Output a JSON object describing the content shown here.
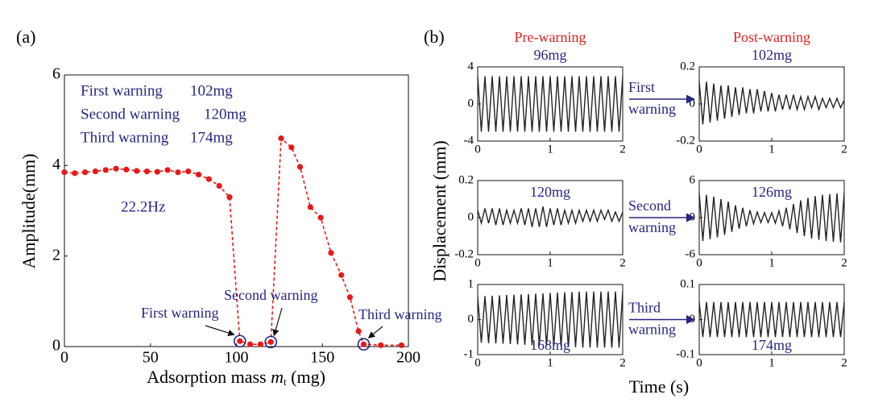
{
  "panel_labels": [
    "(a)",
    "(b)"
  ],
  "panel_a_notes": {
    "info": [
      {
        "event": "First warning",
        "mass": "102mg"
      },
      {
        "event": "Second warning",
        "mass": "120mg"
      },
      {
        "event": "Third warning",
        "mass": "174mg"
      }
    ],
    "frequency": "22.2Hz",
    "warnings": [
      {
        "label": "First warning",
        "x": 102
      },
      {
        "label": "Second warning",
        "x": 120
      },
      {
        "label": "Third warning",
        "x": 174
      }
    ]
  },
  "panel_b": {
    "ylabel": "Displacement (mm)",
    "xlabel": "Time (s)",
    "column_titles": [
      "Pre-warning",
      "Post-warning"
    ],
    "arrow_labels": [
      [
        "First",
        "warning"
      ],
      [
        "Second",
        "warning"
      ],
      [
        "Third",
        "warning"
      ]
    ]
  },
  "chart_data": [
    {
      "type": "line",
      "xlabel": {
        "text": "Adsorption mass ",
        "var": "m",
        "sub": "t",
        "unit": " (mg)"
      },
      "ylabel": "Amplitude(mm)",
      "x": [
        0,
        6,
        12,
        18,
        24,
        30,
        36,
        42,
        48,
        54,
        60,
        66,
        72,
        78,
        84,
        90,
        96,
        102,
        108,
        114,
        120,
        126,
        132,
        137,
        143,
        149,
        155,
        161,
        166,
        171,
        174,
        184,
        196
      ],
      "values": [
        3.85,
        3.83,
        3.85,
        3.87,
        3.9,
        3.93,
        3.91,
        3.88,
        3.87,
        3.86,
        3.9,
        3.85,
        3.87,
        3.8,
        3.7,
        3.55,
        3.3,
        0.12,
        0.05,
        0.05,
        0.1,
        4.6,
        4.4,
        3.97,
        3.08,
        2.85,
        2.07,
        1.58,
        1.09,
        0.34,
        0.05,
        0.03,
        0.03
      ],
      "color": "#e81818",
      "line_style": "dashed",
      "markers": true,
      "xlim": [
        0,
        200
      ],
      "xticks": [
        0,
        50,
        100,
        150,
        200
      ],
      "ylim": [
        0,
        6
      ],
      "yticks": [
        0,
        2,
        4,
        6
      ]
    },
    {
      "type": "line",
      "title": "96mg",
      "color": "#222222",
      "x": [
        0,
        0.05,
        0.1,
        0.15,
        0.2,
        0.25,
        0.3,
        0.35,
        0.4,
        0.45,
        0.5,
        0.55,
        0.6,
        0.65,
        0.7,
        0.75,
        0.8,
        0.85,
        0.9,
        0.95,
        1,
        1.05,
        1.1,
        1.15,
        1.2,
        1.25,
        1.3,
        1.35,
        1.4,
        1.45,
        1.5,
        1.55,
        1.6,
        1.65,
        1.7,
        1.75,
        1.8,
        1.85,
        1.9,
        1.95,
        2
      ],
      "values": [
        3,
        -3,
        3,
        -3,
        3,
        -3,
        3,
        -3,
        3,
        -3,
        3,
        -3,
        3,
        -3,
        3,
        -3,
        3,
        -3,
        3,
        -3,
        3,
        -3,
        3,
        -3,
        3,
        -3,
        3,
        -3,
        3,
        -3,
        3,
        -3,
        3,
        -3,
        3,
        -3,
        3,
        -3,
        3,
        -3,
        3
      ],
      "xlim": [
        0,
        2
      ],
      "xticks": [
        0,
        1,
        2
      ],
      "ylim": [
        -4,
        4
      ],
      "yticks": [
        -4,
        0,
        4
      ]
    },
    {
      "type": "line",
      "title": "102mg",
      "color": "#222222",
      "x": [
        0,
        0.05,
        0.1,
        0.15,
        0.2,
        0.25,
        0.3,
        0.35,
        0.4,
        0.45,
        0.5,
        0.55,
        0.6,
        0.65,
        0.7,
        0.75,
        0.8,
        0.85,
        0.9,
        0.95,
        1,
        1.05,
        1.1,
        1.15,
        1.2,
        1.25,
        1.3,
        1.35,
        1.4,
        1.45,
        1.5,
        1.55,
        1.6,
        1.65,
        1.7,
        1.75,
        1.8,
        1.85,
        1.9,
        1.95,
        2
      ],
      "values": [
        0.12,
        -0.11,
        0.12,
        -0.1,
        0.11,
        -0.09,
        0.1,
        -0.08,
        0.1,
        -0.07,
        0.09,
        -0.06,
        0.09,
        -0.05,
        0.08,
        -0.05,
        0.08,
        -0.04,
        0.07,
        -0.04,
        0.06,
        -0.04,
        0.05,
        -0.03,
        0.05,
        -0.03,
        0.05,
        -0.03,
        0.04,
        -0.03,
        0.04,
        -0.02,
        0.04,
        -0.03,
        0.03,
        -0.02,
        0.03,
        -0.02,
        0.03,
        -0.02,
        0.02
      ],
      "xlim": [
        0,
        2
      ],
      "xticks": [
        0,
        1,
        2
      ],
      "ylim": [
        -0.2,
        0.2
      ],
      "yticks": [
        -0.2,
        0,
        0.2
      ]
    },
    {
      "type": "line",
      "title": "120mg",
      "color": "#222222",
      "x": [
        0,
        0.05,
        0.1,
        0.15,
        0.2,
        0.25,
        0.3,
        0.35,
        0.4,
        0.45,
        0.5,
        0.55,
        0.6,
        0.65,
        0.7,
        0.75,
        0.8,
        0.85,
        0.9,
        0.95,
        1,
        1.05,
        1.1,
        1.15,
        1.2,
        1.25,
        1.3,
        1.35,
        1.4,
        1.45,
        1.5,
        1.55,
        1.6,
        1.65,
        1.7,
        1.75,
        1.8,
        1.85,
        1.9,
        1.95,
        2
      ],
      "values": [
        0.04,
        -0.03,
        0.05,
        -0.03,
        0.05,
        -0.04,
        0.05,
        -0.04,
        0.04,
        -0.03,
        0.04,
        -0.03,
        0.05,
        -0.04,
        0.05,
        -0.05,
        0.05,
        -0.05,
        0.06,
        -0.05,
        0.05,
        -0.04,
        0.05,
        -0.04,
        0.04,
        -0.03,
        0.04,
        -0.03,
        0.04,
        -0.02,
        0.04,
        -0.02,
        0.04,
        -0.02,
        0.04,
        -0.01,
        0.04,
        -0.02,
        0.03,
        -0.02,
        0.03
      ],
      "xlim": [
        0,
        2
      ],
      "xticks": [
        0,
        1,
        2
      ],
      "ylim": [
        -0.2,
        0.2
      ],
      "yticks": [
        -0.2,
        0,
        0.2
      ]
    },
    {
      "type": "line",
      "title": "126mg",
      "color": "#222222",
      "x": [
        0,
        0.05,
        0.1,
        0.15,
        0.2,
        0.25,
        0.3,
        0.35,
        0.4,
        0.45,
        0.5,
        0.55,
        0.6,
        0.65,
        0.7,
        0.75,
        0.8,
        0.85,
        0.9,
        0.95,
        1,
        1.05,
        1.1,
        1.15,
        1.2,
        1.25,
        1.3,
        1.35,
        1.4,
        1.45,
        1.5,
        1.55,
        1.6,
        1.65,
        1.7,
        1.75,
        1.8,
        1.85,
        1.9,
        1.95,
        2
      ],
      "values": [
        4,
        -3.8,
        3.7,
        -3.5,
        3.4,
        -3.2,
        3,
        -2.8,
        2.6,
        -2.3,
        2,
        -1.8,
        1.6,
        -1.4,
        1.2,
        -1,
        0.9,
        -0.8,
        0.8,
        -0.8,
        0.8,
        -0.9,
        1.1,
        -1.4,
        1.6,
        -1.9,
        2.2,
        -2.5,
        2.8,
        -3,
        3.2,
        -3.4,
        3.5,
        -3.6,
        3.7,
        -3.8,
        3.8,
        -3.9,
        3.9,
        -4,
        4
      ],
      "xlim": [
        0,
        2
      ],
      "xticks": [
        0,
        1,
        2
      ],
      "ylim": [
        -6,
        6
      ],
      "yticks": [
        -6,
        0,
        6
      ]
    },
    {
      "type": "line",
      "title": "168mg",
      "color": "#222222",
      "x": [
        0,
        0.05,
        0.1,
        0.15,
        0.2,
        0.25,
        0.3,
        0.35,
        0.4,
        0.45,
        0.5,
        0.55,
        0.6,
        0.65,
        0.7,
        0.75,
        0.8,
        0.85,
        0.9,
        0.95,
        1,
        1.05,
        1.1,
        1.15,
        1.2,
        1.25,
        1.3,
        1.35,
        1.4,
        1.45,
        1.5,
        1.55,
        1.6,
        1.65,
        1.7,
        1.75,
        1.8,
        1.85,
        1.9,
        1.95,
        2
      ],
      "values": [
        0.65,
        -0.66,
        0.67,
        -0.67,
        0.68,
        -0.68,
        0.69,
        -0.69,
        0.7,
        -0.7,
        0.71,
        -0.71,
        0.72,
        -0.72,
        0.73,
        -0.73,
        0.74,
        -0.74,
        0.75,
        -0.75,
        0.76,
        -0.76,
        0.77,
        -0.77,
        0.78,
        -0.78,
        0.79,
        -0.79,
        0.8,
        -0.8,
        0.8,
        -0.8,
        0.8,
        -0.8,
        0.8,
        -0.8,
        0.8,
        -0.8,
        0.8,
        -0.8,
        0.8
      ],
      "xlim": [
        0,
        2
      ],
      "xticks": [
        0,
        1,
        2
      ],
      "ylim": [
        -1,
        1
      ],
      "yticks": [
        -1,
        0,
        1
      ]
    },
    {
      "type": "line",
      "title": "174mg",
      "color": "#222222",
      "x": [
        0,
        0.05,
        0.1,
        0.15,
        0.2,
        0.25,
        0.3,
        0.35,
        0.4,
        0.45,
        0.5,
        0.55,
        0.6,
        0.65,
        0.7,
        0.75,
        0.8,
        0.85,
        0.9,
        0.95,
        1,
        1.05,
        1.1,
        1.15,
        1.2,
        1.25,
        1.3,
        1.35,
        1.4,
        1.45,
        1.5,
        1.55,
        1.6,
        1.65,
        1.7,
        1.75,
        1.8,
        1.85,
        1.9,
        1.95,
        2
      ],
      "values": [
        0.05,
        -0.05,
        0.05,
        -0.05,
        0.05,
        -0.05,
        0.05,
        -0.05,
        0.05,
        -0.05,
        0.05,
        -0.05,
        0.05,
        -0.05,
        0.05,
        -0.05,
        0.05,
        -0.05,
        0.05,
        -0.05,
        0.05,
        -0.05,
        0.05,
        -0.05,
        0.05,
        -0.05,
        0.05,
        -0.05,
        0.05,
        -0.05,
        0.05,
        -0.05,
        0.05,
        -0.05,
        0.05,
        -0.05,
        0.05,
        -0.05,
        0.05,
        -0.05,
        0.05
      ],
      "xlim": [
        0,
        2
      ],
      "xticks": [
        0,
        1,
        2
      ],
      "ylim": [
        -0.1,
        0.1
      ],
      "yticks": [
        -0.1,
        0,
        0.1
      ]
    }
  ]
}
